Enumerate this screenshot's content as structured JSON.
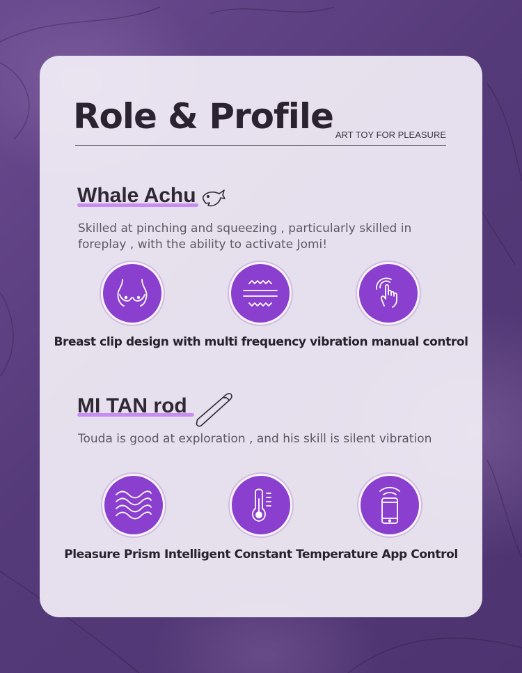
{
  "header": {
    "title": "Role & Profile",
    "subtitle": "ART TOY FOR PLEASURE"
  },
  "sections": [
    {
      "name": "Whale Achu",
      "description": "Skilled at pinching and squeezing , particularly skilled in foreplay , with the ability to activate Jomi!",
      "decoration_icon": "whale-outline-icon",
      "icons": [
        "breast-outline-icon",
        "vibration-waves-icon",
        "finger-touch-icon"
      ],
      "features": "Breast clip design with multi frequency vibration manual control"
    },
    {
      "name": "MI TAN rod",
      "description": "Touda is good at exploration , and his skill is silent vibration",
      "decoration_icon": "rod-outline-icon",
      "icons": [
        "water-waves-icon",
        "thermometer-icon",
        "phone-signal-icon"
      ],
      "features": "Pleasure Prism Intelligent Constant Temperature App Control"
    }
  ],
  "colors": {
    "accent": "#8a3fcf",
    "highlight": "#c98cf3",
    "card": "#f6f2fa",
    "background": "#5a3e7e"
  }
}
